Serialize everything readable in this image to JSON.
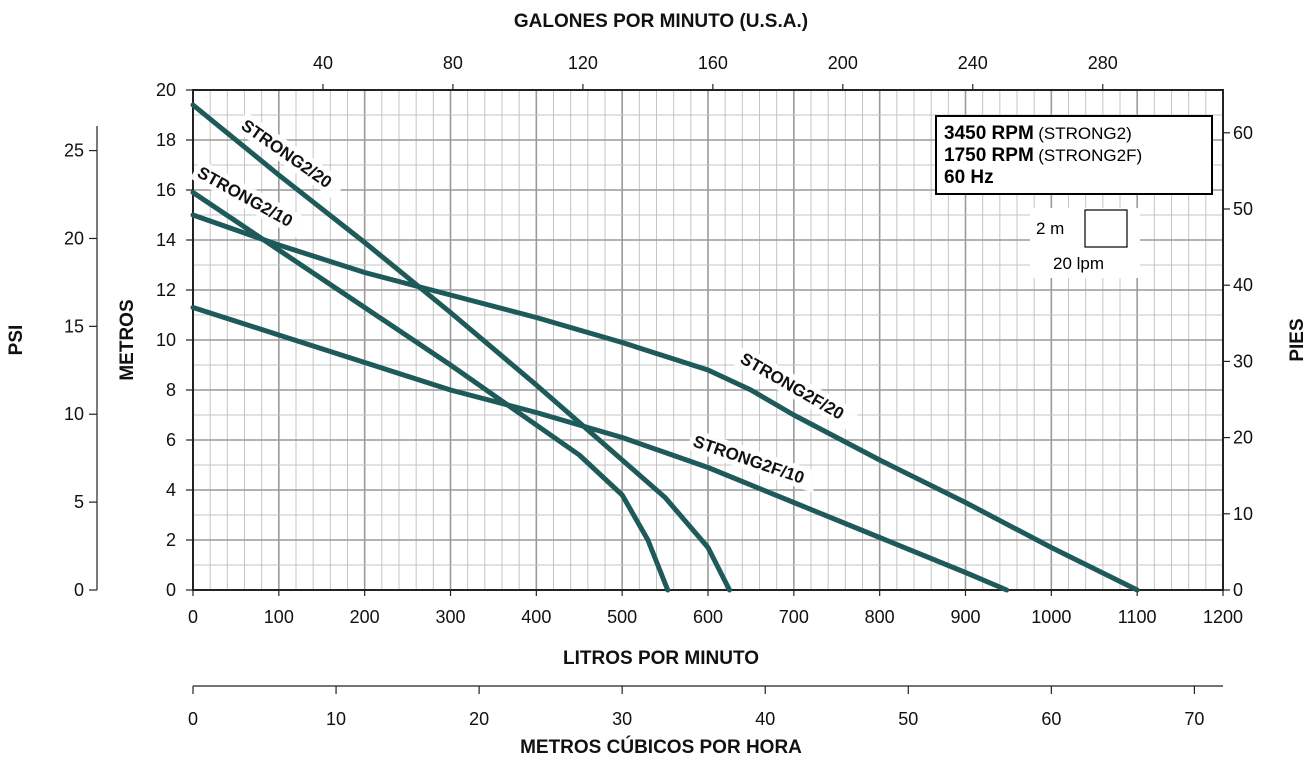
{
  "chart_data": {
    "type": "line",
    "title": "",
    "colors": {
      "curve": "#1f5a5b",
      "grid_major": "#9a9a9a",
      "grid_minor": "#c4c4c4",
      "axis": "#222222"
    },
    "axes": {
      "bottom": {
        "label": "LITROS POR MINUTO",
        "range": [
          0,
          1200
        ],
        "ticks": [
          "0",
          "100",
          "200",
          "300",
          "400",
          "500",
          "600",
          "700",
          "800",
          "900",
          "1000",
          "1100",
          "1200"
        ]
      },
      "top": {
        "label": "GALONES POR MINUTO (U.S.A.)",
        "ticks": [
          "40",
          "80",
          "120",
          "160",
          "200",
          "240",
          "280"
        ]
      },
      "cubic": {
        "label": "METROS CÚBICOS POR HORA",
        "range": [
          0,
          72
        ],
        "ticks": [
          "0",
          "10",
          "20",
          "30",
          "40",
          "50",
          "60",
          "70"
        ]
      },
      "left": {
        "label": "METROS",
        "range": [
          0,
          20
        ],
        "ticks": [
          "0",
          "2",
          "4",
          "6",
          "8",
          "10",
          "12",
          "14",
          "16",
          "18",
          "20"
        ]
      },
      "psi": {
        "label": "PSI",
        "ticks": [
          "0",
          "5",
          "10",
          "15",
          "20",
          "25"
        ]
      },
      "right": {
        "label": "PIES",
        "ticks": [
          "0",
          "10",
          "20",
          "30",
          "40",
          "50",
          "60"
        ]
      },
      "grid": true
    },
    "legend": {
      "lines": [
        {
          "bold": "3450 RPM",
          "normal": "(STRONG2)"
        },
        {
          "bold": "1750 RPM",
          "normal": "(STRONG2F)"
        },
        {
          "bold": "60 Hz",
          "normal": ""
        }
      ],
      "scale_h": "2 m",
      "scale_w": "20 lpm",
      "placement": "top-right"
    },
    "series": [
      {
        "name": "STRONG2/20",
        "x": [
          0,
          100,
          200,
          300,
          400,
          450,
          500,
          550,
          600,
          625
        ],
        "y": [
          19.4,
          16.6,
          13.9,
          11.1,
          8.2,
          6.7,
          5.2,
          3.7,
          1.7,
          0
        ]
      },
      {
        "name": "STRONG2/10",
        "x": [
          0,
          100,
          200,
          300,
          400,
          450,
          500,
          530,
          553
        ],
        "y": [
          15.9,
          13.6,
          11.3,
          9.0,
          6.6,
          5.4,
          3.8,
          2.0,
          0
        ]
      },
      {
        "name": "STRONG2F/20",
        "x": [
          0,
          100,
          200,
          300,
          400,
          500,
          600,
          650,
          700,
          750,
          800,
          900,
          1000,
          1100
        ],
        "y": [
          15.0,
          13.8,
          12.7,
          11.8,
          10.9,
          9.9,
          8.8,
          8.0,
          7.0,
          6.1,
          5.2,
          3.5,
          1.7,
          0
        ]
      },
      {
        "name": "STRONG2F/10",
        "x": [
          0,
          100,
          200,
          300,
          400,
          500,
          550,
          600,
          700,
          800,
          900,
          948
        ],
        "y": [
          11.3,
          10.2,
          9.1,
          8.0,
          7.1,
          6.1,
          5.5,
          4.9,
          3.5,
          2.1,
          0.7,
          0
        ]
      }
    ]
  }
}
